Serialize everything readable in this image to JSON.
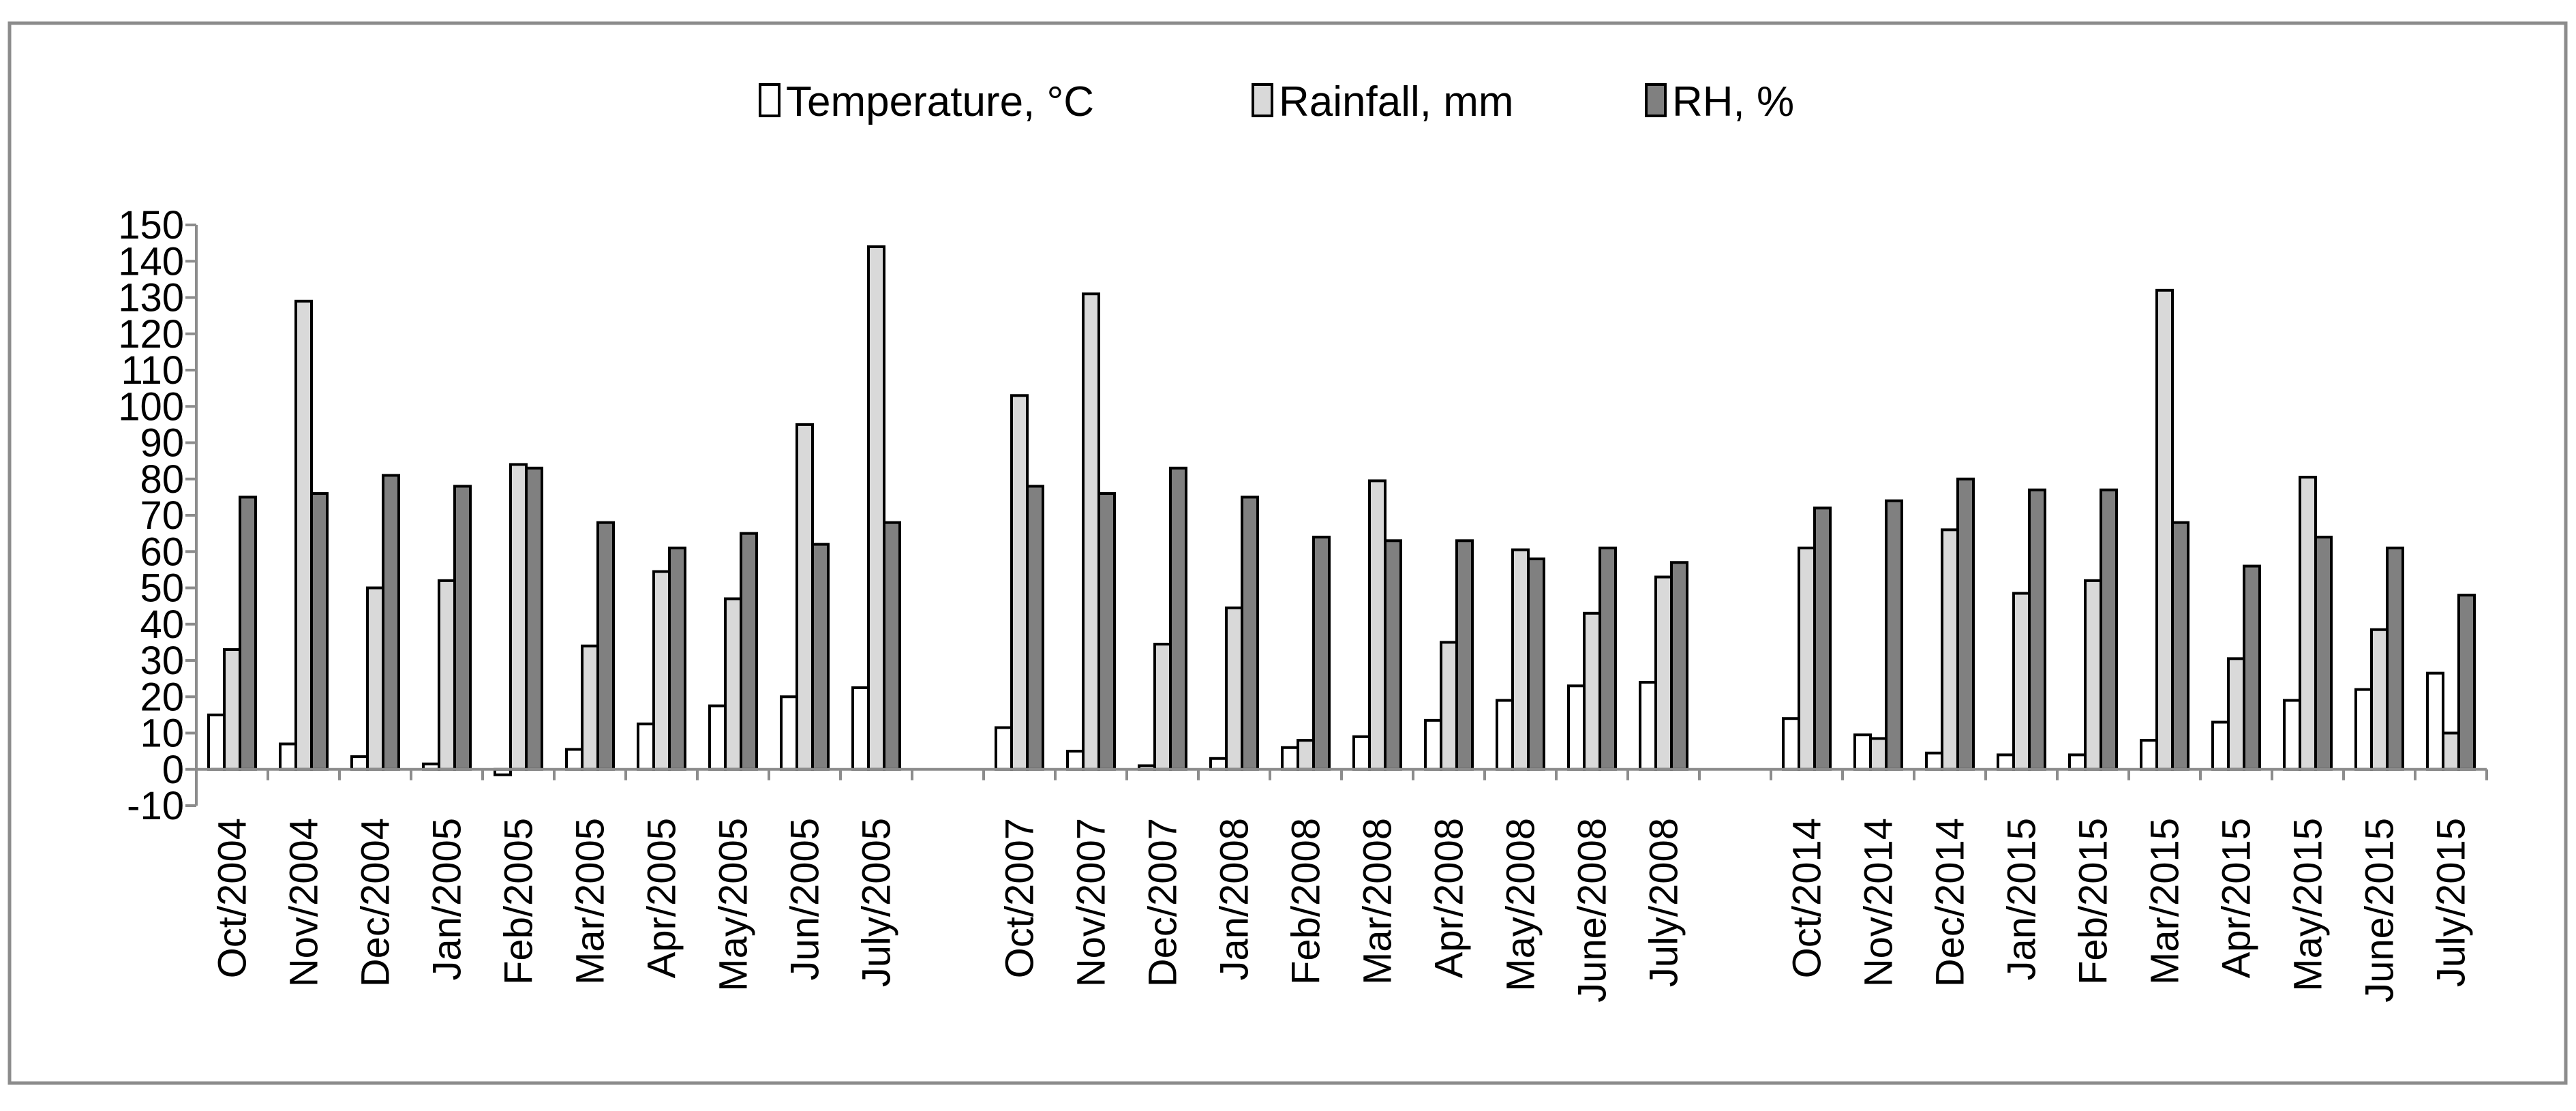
{
  "chart_data": {
    "type": "bar",
    "title": "",
    "xlabel": "",
    "ylabel": "",
    "ylim": [
      -10,
      150
    ],
    "ytick_step": 10,
    "grid": false,
    "legend_position": "top-center",
    "categories": [
      "Oct/2004",
      "Nov/2004",
      "Dec/2004",
      "Jan/2005",
      "Feb/2005",
      "Mar/2005",
      "Apr/2005",
      "May/2005",
      "Jun/2005",
      "July/2005",
      "",
      "Oct/2007",
      "Nov/2007",
      "Dec/2007",
      "Jan/2008",
      "Feb/2008",
      "Mar/2008",
      "Apr/2008",
      "May/2008",
      "June/2008",
      "July/2008",
      "",
      "Oct/2014",
      "Nov/2014",
      "Dec/2014",
      "Jan/2015",
      "Feb/2015",
      "Mar/2015",
      "Apr/2015",
      "May/2015",
      "June/2015",
      "July/2015"
    ],
    "series": [
      {
        "name": "Temperature, °C",
        "color": "#ffffff",
        "values": [
          15,
          7,
          3.5,
          1.5,
          -1.5,
          5.5,
          12.5,
          17.5,
          20,
          22.5,
          null,
          11.5,
          5,
          1,
          3,
          6,
          9,
          13.5,
          19,
          23,
          24,
          null,
          14,
          9.5,
          4.5,
          4,
          4,
          8,
          13,
          19,
          22,
          26.5
        ]
      },
      {
        "name": "Rainfall, mm",
        "color": "#d9d9d9",
        "values": [
          33,
          129,
          50,
          52,
          84,
          34,
          54.5,
          47,
          95,
          144,
          null,
          103,
          131,
          34.5,
          44.5,
          8,
          79.5,
          35,
          60.5,
          43,
          53,
          null,
          61,
          8.5,
          66,
          48.5,
          52,
          132,
          30.5,
          80.5,
          38.5,
          10
        ]
      },
      {
        "name": "RH, %",
        "color": "#808080",
        "values": [
          75,
          76,
          81,
          78,
          83,
          68,
          61,
          65,
          62,
          68,
          null,
          78,
          76,
          83,
          75,
          64,
          63,
          63,
          58,
          61,
          57,
          null,
          72,
          74,
          80,
          77,
          77,
          68,
          56,
          64,
          61,
          48
        ]
      }
    ]
  }
}
